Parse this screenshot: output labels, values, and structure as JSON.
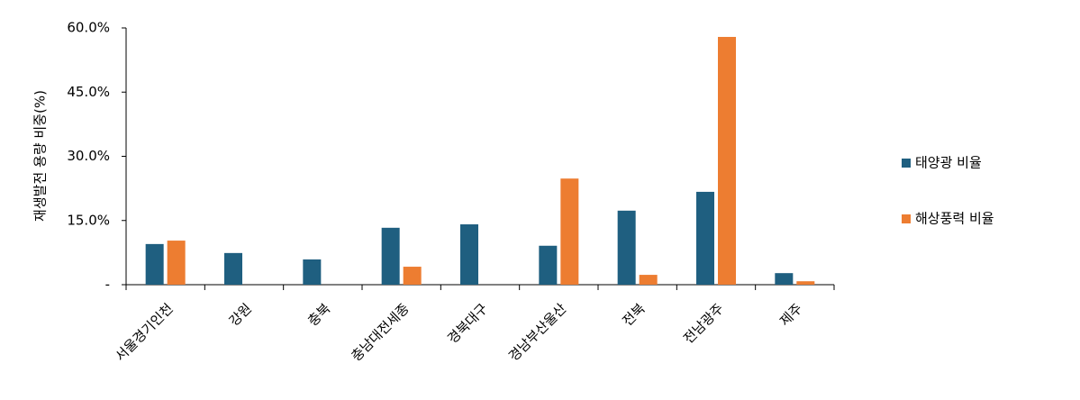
{
  "chart_data": {
    "type": "bar",
    "y_label": "재생발전 용량 비중(%)",
    "categories": [
      "서울경기인천",
      "강원",
      "충북",
      "충남대전세종",
      "경북대구",
      "경남부산울산",
      "전북",
      "전남광주",
      "제주"
    ],
    "series": [
      {
        "name": "태양광 비율",
        "color": "#1f5f80",
        "values": [
          9.5,
          7.4,
          5.9,
          13.3,
          14.1,
          9.1,
          17.3,
          21.7,
          2.7
        ]
      },
      {
        "name": "해상풍력 비율",
        "color": "#ed7d31",
        "values": [
          10.3,
          0,
          0,
          4.2,
          0,
          24.8,
          2.3,
          57.9,
          0.8
        ]
      }
    ],
    "ylim": [
      0,
      60
    ],
    "yticks": [
      {
        "value": 0,
        "label": "-"
      },
      {
        "value": 15,
        "label": "15.0%"
      },
      {
        "value": 30,
        "label": "30.0%"
      },
      {
        "value": 45,
        "label": "45.0%"
      },
      {
        "value": 60,
        "label": "60.0%"
      }
    ],
    "legend": "right"
  }
}
